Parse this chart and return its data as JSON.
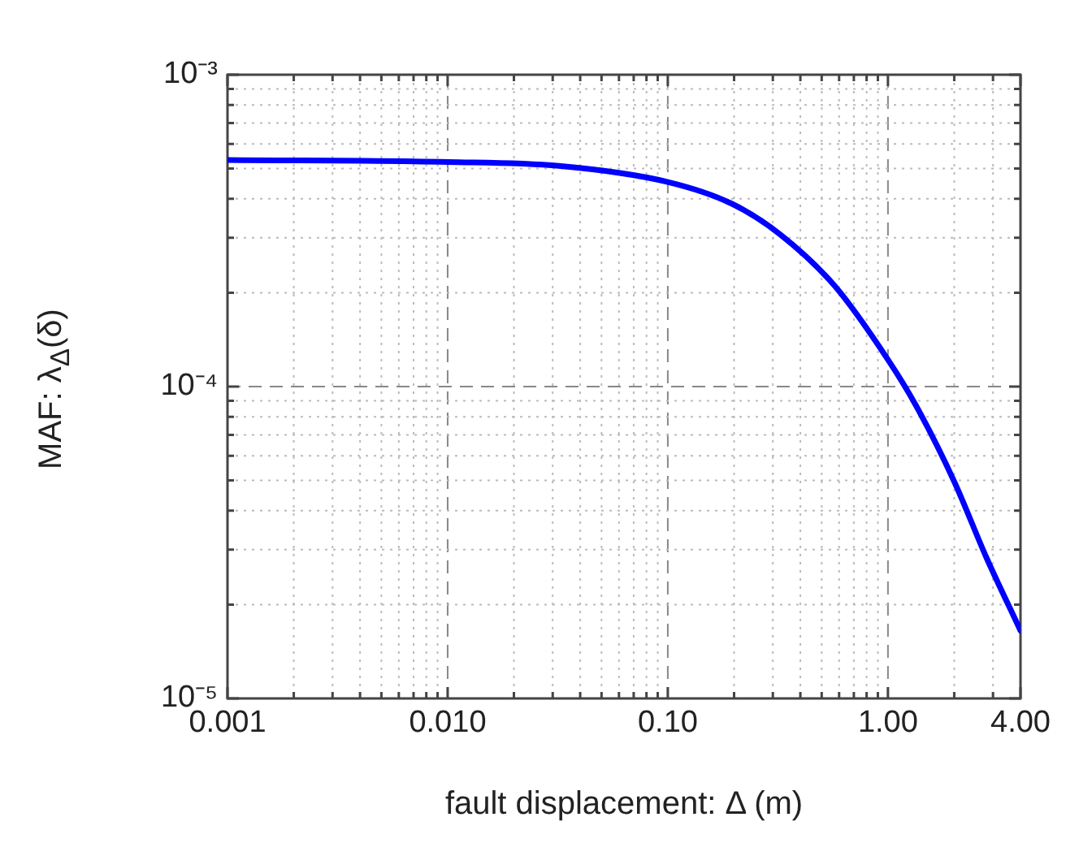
{
  "chart_data": {
    "type": "line",
    "xlabel": "fault displacement: Δ (m)",
    "ylabel": "MAF: λ$_{Δ}$(δ)",
    "log": "xy",
    "grid": true,
    "marker": "none",
    "line_style": "solid",
    "xlim": [
      0.001,
      4
    ],
    "ylim": [
      1e-05,
      0.001
    ],
    "xticks": [
      {
        "value": 0.001,
        "label": "0.001"
      },
      {
        "value": 0.002,
        "label": null
      },
      {
        "value": 0.003,
        "label": null
      },
      {
        "value": 0.004,
        "label": null
      },
      {
        "value": 0.005,
        "label": null
      },
      {
        "value": 0.006,
        "label": null
      },
      {
        "value": 0.007,
        "label": null
      },
      {
        "value": 0.008,
        "label": null
      },
      {
        "value": 0.009,
        "label": null
      },
      {
        "value": 0.01,
        "label": "0.010"
      },
      {
        "value": 0.02,
        "label": null
      },
      {
        "value": 0.03,
        "label": null
      },
      {
        "value": 0.04,
        "label": null
      },
      {
        "value": 0.05,
        "label": null
      },
      {
        "value": 0.06,
        "label": null
      },
      {
        "value": 0.07,
        "label": null
      },
      {
        "value": 0.08,
        "label": null
      },
      {
        "value": 0.09,
        "label": null
      },
      {
        "value": 0.1,
        "label": "0.10"
      },
      {
        "value": 0.2,
        "label": null
      },
      {
        "value": 0.3,
        "label": null
      },
      {
        "value": 0.4,
        "label": null
      },
      {
        "value": 0.5,
        "label": null
      },
      {
        "value": 0.6,
        "label": null
      },
      {
        "value": 0.7,
        "label": null
      },
      {
        "value": 0.8,
        "label": null
      },
      {
        "value": 0.9,
        "label": null
      },
      {
        "value": 1,
        "label": "1.00"
      },
      {
        "value": 2,
        "label": null
      },
      {
        "value": 3,
        "label": null
      },
      {
        "value": 4,
        "label": "4.00"
      }
    ],
    "yticks": [
      {
        "value": 1e-05,
        "label": "10⁻⁵"
      },
      {
        "value": 2e-05,
        "label": null
      },
      {
        "value": 3e-05,
        "label": null
      },
      {
        "value": 4e-05,
        "label": null
      },
      {
        "value": 5e-05,
        "label": null
      },
      {
        "value": 6e-05,
        "label": null
      },
      {
        "value": 7e-05,
        "label": null
      },
      {
        "value": 8e-05,
        "label": null
      },
      {
        "value": 9e-05,
        "label": null
      },
      {
        "value": 0.0001,
        "label": "10⁻⁴"
      },
      {
        "value": 0.0002,
        "label": null
      },
      {
        "value": 0.0003,
        "label": null
      },
      {
        "value": 0.0004,
        "label": null
      },
      {
        "value": 0.0005,
        "label": null
      },
      {
        "value": 0.0006,
        "label": null
      },
      {
        "value": 0.0007,
        "label": null
      },
      {
        "value": 0.0008,
        "label": null
      },
      {
        "value": 0.0009,
        "label": null
      },
      {
        "value": 0.001,
        "label": "10⁻³"
      }
    ],
    "x": [
      0.001,
      0.01,
      0.032,
      0.1,
      0.195,
      0.325,
      0.574,
      1,
      1.34,
      2.0,
      2.8,
      4
    ],
    "series": [
      {
        "color": "#0000ff",
        "values": [
          0.000533,
          0.000525,
          0.00051,
          0.000453,
          0.000386,
          0.000307,
          0.00021,
          0.000122,
          8.7e-05,
          4.96e-05,
          2.83e-05,
          1.65e-05
        ]
      }
    ]
  }
}
